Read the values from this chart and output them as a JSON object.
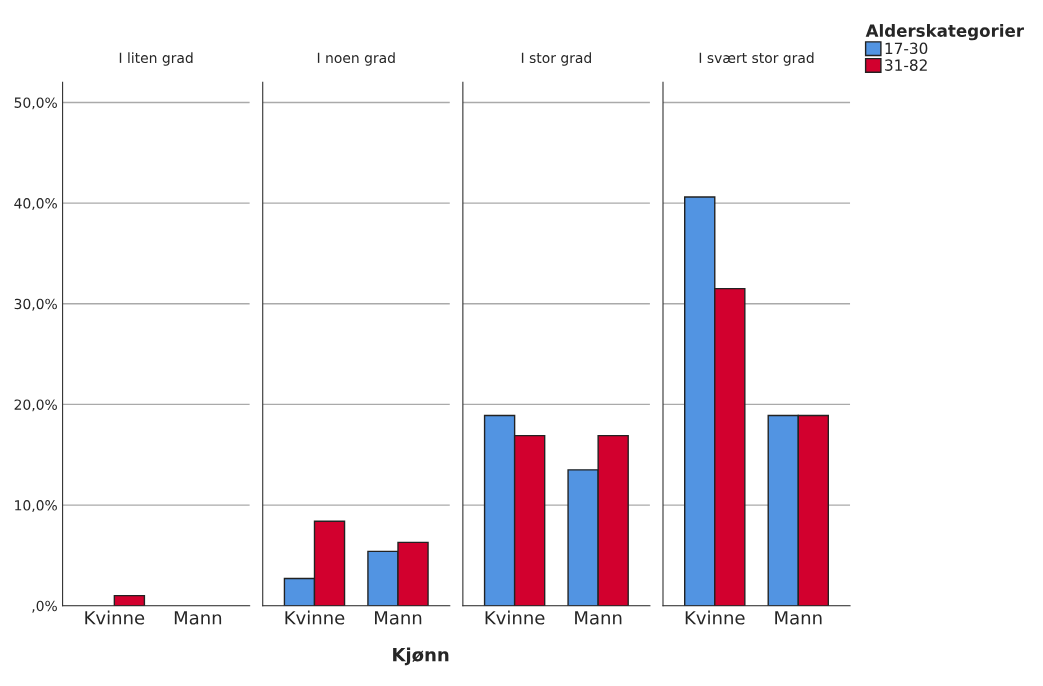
{
  "chart_data": [
    {
      "type": "bar",
      "title": "I liten grad",
      "categories": [
        "Kvinne",
        "Mann"
      ],
      "series": [
        {
          "values": [
            null,
            null
          ]
        },
        {
          "color": "#d2002e",
          "values": [
            1.0,
            null
          ]
        }
      ],
      "ylim": [
        0,
        52
      ],
      "yticks": [
        {
          "value": 0,
          "label": ",0%"
        },
        {
          "value": 10,
          "label": "10,0%"
        },
        {
          "value": 20,
          "label": "20,0%"
        },
        {
          "value": 30,
          "label": "30,0%"
        },
        {
          "value": 40,
          "label": "40,0%"
        },
        {
          "value": 50,
          "label": "50,0%"
        }
      ],
      "grid": "y"
    },
    {
      "type": "bar",
      "title": "I noen grad",
      "xlabel": "Kjønn",
      "categories": [
        "Kvinne",
        "Mann"
      ],
      "series": [
        {
          "color": "#5294e2",
          "values": [
            2.7,
            5.4
          ]
        },
        {
          "color": "#d2002e",
          "values": [
            8.4,
            6.3
          ]
        }
      ],
      "ylim": [
        0,
        52
      ],
      "yticks": [
        0,
        10,
        20,
        30,
        40,
        50
      ],
      "tick_labels": "x",
      "grid": "y"
    },
    {
      "type": "bar",
      "title": "I stor grad",
      "categories": [
        "Kvinne",
        "Mann"
      ],
      "series": [
        {
          "color": "#5294e2",
          "values": [
            18.9,
            13.5
          ]
        },
        {
          "color": "#d2002e",
          "values": [
            16.9,
            16.9
          ]
        }
      ],
      "ylim": [
        0,
        52
      ],
      "yticks": [
        0,
        10,
        20,
        30,
        40,
        50
      ],
      "tick_labels": "x",
      "grid": "y"
    },
    {
      "type": "bar",
      "title": "I svært stor grad",
      "categories": [
        "Kvinne",
        "Mann"
      ],
      "series": [
        {
          "name": "17-30",
          "color": "#5294e2",
          "values": [
            40.6,
            18.9
          ]
        },
        {
          "name": "31-82",
          "color": "#d2002e",
          "values": [
            31.5,
            18.9
          ]
        }
      ],
      "ylim": [
        0,
        52
      ],
      "yticks": [
        0,
        10,
        20,
        30,
        40,
        50
      ],
      "tick_labels": "x",
      "grid": "y",
      "legend": "top right",
      "legend_title": "Alderskategorier"
    }
  ]
}
